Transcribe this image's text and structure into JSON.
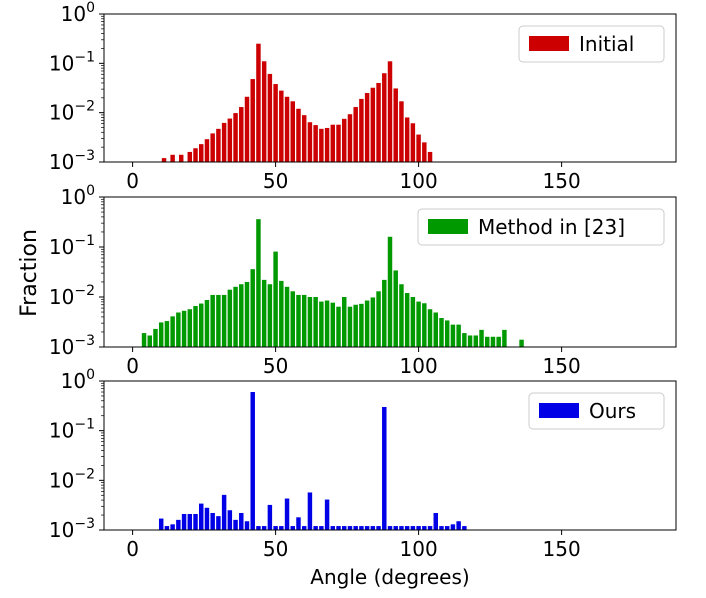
{
  "figure": {
    "ylabel": "Fraction",
    "xlabel": "Angle (degrees)"
  },
  "chart_data": [
    {
      "type": "bar",
      "legend": "Initial",
      "legend_position": "top-right",
      "color": "#cc0000",
      "xlim": [
        -10,
        190
      ],
      "ylim": [
        0.001,
        1
      ],
      "yscale": "log",
      "xticks": [
        "0",
        "50",
        "100",
        "150"
      ],
      "yticks": [
        "10^-3",
        "10^-2",
        "10^-1",
        "10^0"
      ],
      "x": [
        11,
        14,
        17,
        20,
        22,
        24,
        26,
        28,
        30,
        32,
        34,
        36,
        38,
        40,
        42,
        44,
        46,
        48,
        50,
        52,
        54,
        56,
        58,
        60,
        62,
        64,
        66,
        68,
        70,
        72,
        74,
        76,
        78,
        80,
        82,
        84,
        86,
        88,
        90,
        92,
        94,
        96,
        98,
        100,
        102,
        104
      ],
      "values": [
        0.0012,
        0.0014,
        0.0014,
        0.0016,
        0.0019,
        0.0023,
        0.0029,
        0.0038,
        0.0047,
        0.0062,
        0.0076,
        0.0098,
        0.013,
        0.021,
        0.048,
        0.25,
        0.11,
        0.061,
        0.038,
        0.028,
        0.021,
        0.017,
        0.012,
        0.0089,
        0.0064,
        0.0056,
        0.0047,
        0.0049,
        0.0057,
        0.0057,
        0.0075,
        0.0093,
        0.013,
        0.019,
        0.025,
        0.032,
        0.04,
        0.063,
        0.11,
        0.031,
        0.017,
        0.008,
        0.0061,
        0.0036,
        0.0025,
        0.0016
      ]
    },
    {
      "type": "bar",
      "legend": "Method in [23]",
      "legend_position": "top-right",
      "color": "#009900",
      "xlim": [
        -10,
        190
      ],
      "ylim": [
        0.001,
        1
      ],
      "yscale": "log",
      "xticks": [
        "0",
        "50",
        "100",
        "150"
      ],
      "yticks": [
        "10^-3",
        "10^-2",
        "10^-1",
        "10^0"
      ],
      "x": [
        4,
        6,
        8,
        10,
        12,
        14,
        16,
        18,
        20,
        22,
        24,
        26,
        28,
        30,
        32,
        34,
        36,
        38,
        40,
        42,
        44,
        46,
        48,
        50,
        52,
        54,
        56,
        58,
        60,
        62,
        64,
        66,
        68,
        70,
        72,
        74,
        76,
        78,
        80,
        82,
        84,
        86,
        88,
        90,
        92,
        94,
        96,
        98,
        100,
        102,
        104,
        106,
        108,
        110,
        112,
        114,
        116,
        118,
        120,
        122,
        124,
        126,
        128,
        130,
        136
      ],
      "values": [
        0.0019,
        0.0017,
        0.0023,
        0.0031,
        0.0033,
        0.0041,
        0.0049,
        0.0053,
        0.0057,
        0.0066,
        0.0074,
        0.0087,
        0.011,
        0.011,
        0.011,
        0.014,
        0.016,
        0.018,
        0.02,
        0.036,
        0.36,
        0.022,
        0.018,
        0.081,
        0.021,
        0.016,
        0.013,
        0.011,
        0.011,
        0.01,
        0.01,
        0.0081,
        0.0085,
        0.0077,
        0.0064,
        0.01,
        0.0064,
        0.007,
        0.0073,
        0.0085,
        0.0098,
        0.013,
        0.022,
        0.16,
        0.034,
        0.018,
        0.012,
        0.01,
        0.0081,
        0.0075,
        0.0057,
        0.0049,
        0.0038,
        0.0034,
        0.0028,
        0.0028,
        0.0019,
        0.0017,
        0.0017,
        0.0022,
        0.0016,
        0.0016,
        0.0016,
        0.0022,
        0.0014
      ]
    },
    {
      "type": "bar",
      "legend": "Ours",
      "legend_position": "top-right",
      "color": "#0000e6",
      "xlim": [
        -10,
        190
      ],
      "ylim": [
        0.001,
        1
      ],
      "yscale": "log",
      "xticks": [
        "0",
        "50",
        "100",
        "150"
      ],
      "yticks": [
        "10^-3",
        "10^-2",
        "10^-1",
        "10^0"
      ],
      "x": [
        8,
        10,
        12,
        14,
        16,
        18,
        20,
        22,
        24,
        26,
        28,
        30,
        32,
        34,
        36,
        38,
        40,
        42,
        44,
        46,
        48,
        50,
        52,
        54,
        56,
        58,
        60,
        62,
        64,
        66,
        68,
        70,
        72,
        74,
        76,
        78,
        80,
        82,
        84,
        86,
        88,
        90,
        92,
        94,
        96,
        98,
        100,
        102,
        104,
        106,
        108,
        110,
        112,
        114,
        116
      ],
      "values": [
        0,
        0.0017,
        0.0012,
        0.0013,
        0.0016,
        0.0021,
        0.0021,
        0.0021,
        0.0034,
        0.0028,
        0.0022,
        0.0019,
        0.0051,
        0.0025,
        0.0016,
        0.0022,
        0.0015,
        0.6,
        0.0012,
        0.0012,
        0.0032,
        0.0012,
        0.0012,
        0.0043,
        0.0012,
        0.0018,
        0.0012,
        0.0057,
        0.0012,
        0.0012,
        0.0041,
        0.0012,
        0.0012,
        0.0012,
        0.0012,
        0.0012,
        0.0012,
        0.0012,
        0.0012,
        0.0012,
        0.3,
        0.0012,
        0.0012,
        0.0012,
        0.0012,
        0.0012,
        0.0012,
        0.0012,
        0.0012,
        0.0022,
        0.0012,
        0.0012,
        0.0013,
        0.0015,
        0.0012
      ]
    }
  ]
}
